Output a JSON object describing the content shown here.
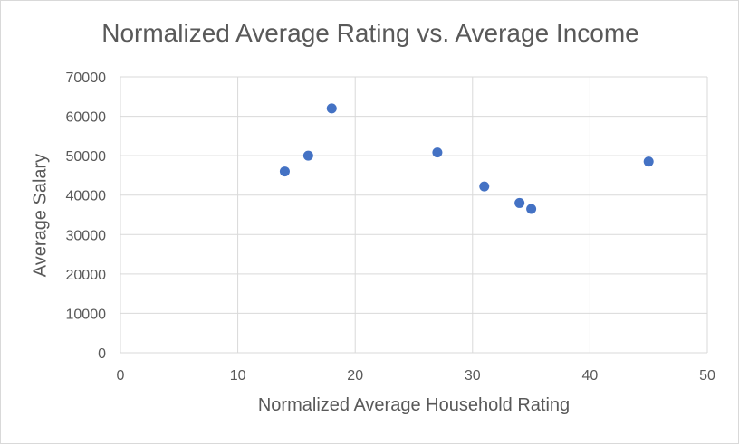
{
  "chart_data": {
    "type": "scatter",
    "title": "Normalized Average Rating vs. Average Income",
    "xlabel": "Normalized Average Household Rating",
    "ylabel": "Average Salary",
    "xlim": [
      0,
      50
    ],
    "ylim": [
      0,
      70000
    ],
    "x_ticks": [
      0,
      10,
      20,
      30,
      40,
      50
    ],
    "y_ticks": [
      0,
      10000,
      20000,
      30000,
      40000,
      50000,
      60000,
      70000
    ],
    "grid": true,
    "legend": "none",
    "marker_color": "#4472C4",
    "points": [
      {
        "x": 14,
        "y": 46000
      },
      {
        "x": 16,
        "y": 50000
      },
      {
        "x": 18,
        "y": 62000
      },
      {
        "x": 27,
        "y": 50800
      },
      {
        "x": 31,
        "y": 42200
      },
      {
        "x": 34,
        "y": 38000
      },
      {
        "x": 35,
        "y": 36500
      },
      {
        "x": 45,
        "y": 48500
      }
    ]
  }
}
